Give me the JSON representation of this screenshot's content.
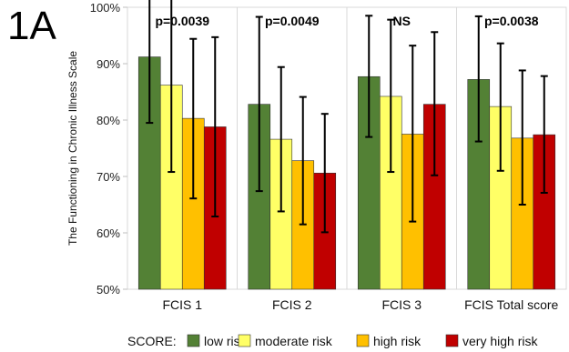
{
  "panel_label": "1A",
  "chart_data": {
    "type": "bar",
    "ylabel": "The Functioning in Chronic Illness Scale",
    "ylim": [
      50,
      100
    ],
    "yticks": [
      50,
      60,
      70,
      80,
      90,
      100
    ],
    "ytick_labels": [
      "50%",
      "60%",
      "70%",
      "80%",
      "90%",
      "100%"
    ],
    "grid": "vertical separators between groups",
    "categories": [
      "FCIS 1",
      "FCIS 2",
      "FCIS 3",
      "FCIS Total score"
    ],
    "annotations": [
      "p=0.0039",
      "p=0.0049",
      "NS",
      "p=0.0038"
    ],
    "legend_title": "SCORE:",
    "legend_position": "bottom",
    "series": [
      {
        "name": "low risk",
        "color": "#538135",
        "values": [
          91.2,
          82.8,
          87.7,
          87.2
        ],
        "err_low": [
          79.5,
          67.4,
          77.0,
          76.2
        ],
        "err_high": [
          102.9,
          98.3,
          98.5,
          98.4
        ]
      },
      {
        "name": "moderate risk",
        "color": "#ffff66",
        "values": [
          86.2,
          76.6,
          84.2,
          82.4
        ],
        "err_low": [
          70.8,
          63.8,
          70.8,
          71.0
        ],
        "err_high": [
          101.8,
          89.4,
          97.8,
          93.6
        ]
      },
      {
        "name": "high risk",
        "color": "#ffc000",
        "values": [
          80.3,
          72.8,
          77.5,
          76.8
        ],
        "err_low": [
          66.1,
          61.5,
          62.0,
          65.0
        ],
        "err_high": [
          94.4,
          84.1,
          93.2,
          88.8
        ]
      },
      {
        "name": "very high risk",
        "color": "#c00000",
        "values": [
          78.8,
          70.6,
          82.8,
          77.4
        ],
        "err_low": [
          62.9,
          60.1,
          70.2,
          67.1
        ],
        "err_high": [
          94.7,
          81.1,
          95.6,
          87.8
        ]
      }
    ]
  }
}
